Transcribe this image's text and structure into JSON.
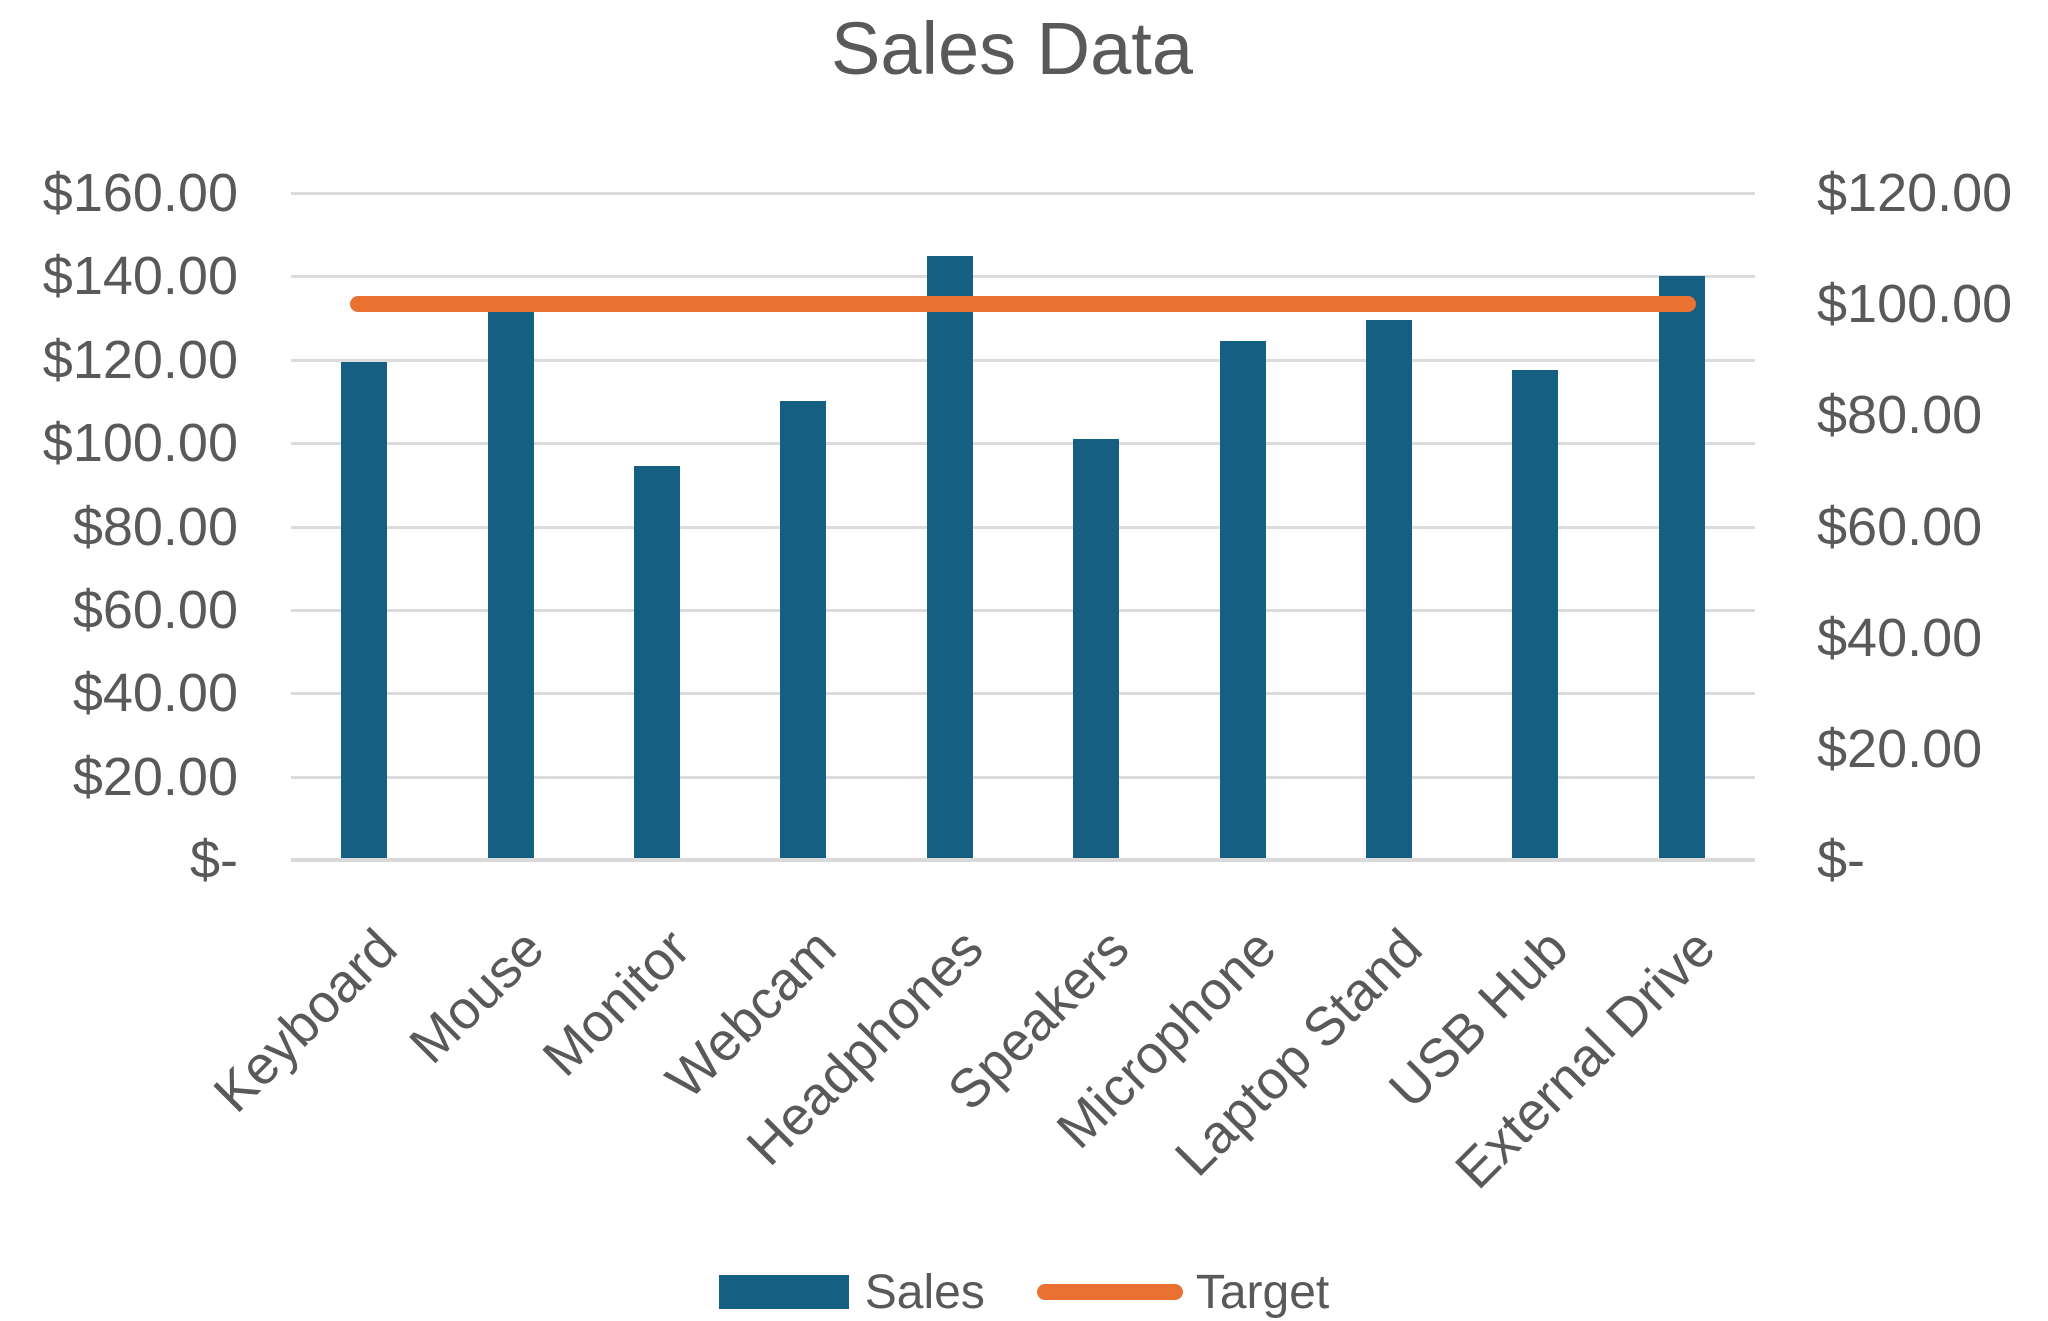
{
  "chart_data": {
    "type": "bar",
    "subtype": "combo-bar-line-two-axes",
    "title": "Sales Data",
    "categories": [
      "Keyboard",
      "Mouse",
      "Monitor",
      "Webcam",
      "Headphones",
      "Speakers",
      "Microphone",
      "Laptop Stand",
      "USB Hub",
      "External Drive"
    ],
    "series": [
      {
        "name": "Sales",
        "type": "bar",
        "axis": "left",
        "color": "#156082",
        "values": [
          119.5,
          131.5,
          94.5,
          110,
          145,
          101,
          124.5,
          129.5,
          117.5,
          140
        ]
      },
      {
        "name": "Target",
        "type": "line",
        "axis": "right",
        "color": "#E97132",
        "values": [
          100,
          100,
          100,
          100,
          100,
          100,
          100,
          100,
          100,
          100
        ]
      }
    ],
    "left_axis": {
      "min": 0,
      "max": 160,
      "step": 20,
      "tick_labels": [
        "$-",
        "$20.00",
        "$40.00",
        "$60.00",
        "$80.00",
        "$100.00",
        "$120.00",
        "$140.00",
        "$160.00"
      ]
    },
    "right_axis": {
      "min": 0,
      "max": 120,
      "step": 20,
      "tick_labels": [
        "$-",
        "$20.00",
        "$40.00",
        "$60.00",
        "$80.00",
        "$100.00",
        "$120.00"
      ]
    },
    "legend": {
      "position": "bottom",
      "entries": [
        {
          "label": "Sales",
          "swatch": "rect",
          "color": "#156082"
        },
        {
          "label": "Target",
          "swatch": "line",
          "color": "#E97132"
        }
      ]
    },
    "grid": "horizontal",
    "styles": {
      "text_color": "#595959",
      "gridline_color": "#DCDCDC",
      "axis_line_color": "#D9D9D9",
      "background": "#FFFFFF"
    }
  }
}
